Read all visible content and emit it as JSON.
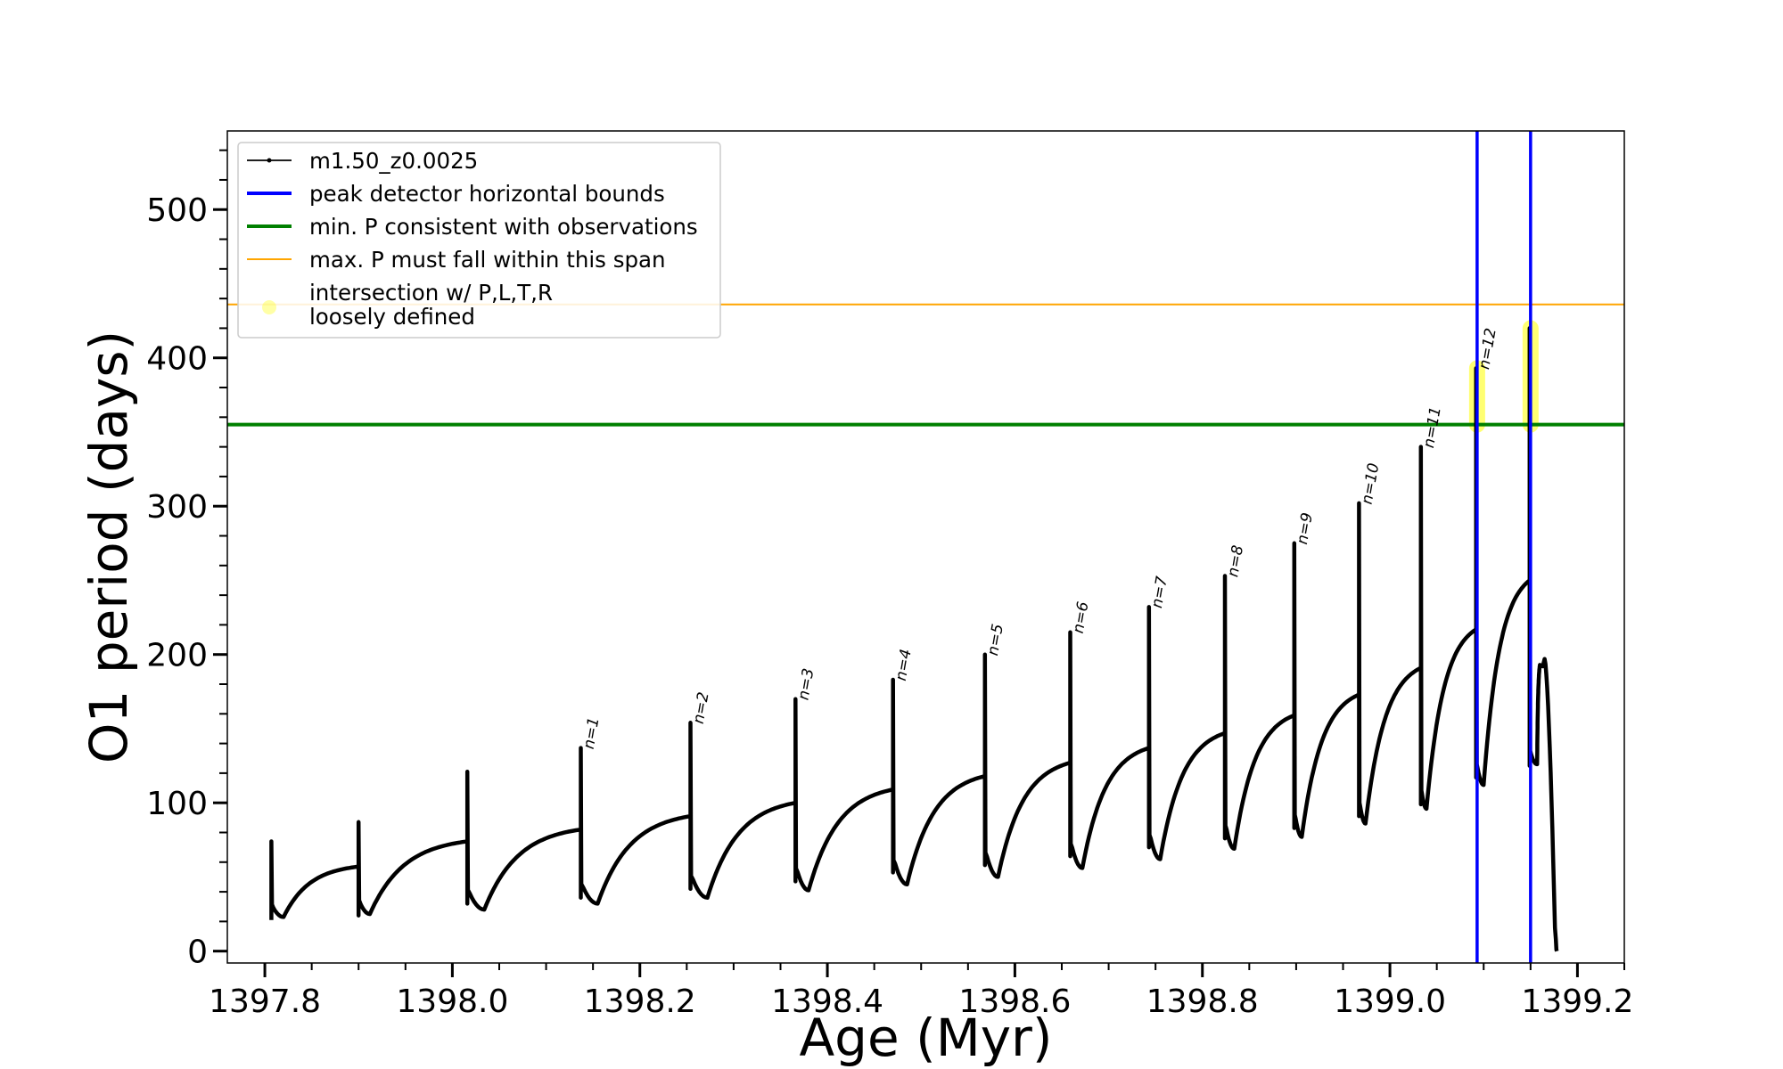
{
  "chart_data": {
    "type": "line",
    "xlabel": "Age (Myr)",
    "ylabel": "O1 period (days)",
    "xlim": [
      1397.76,
      1399.25
    ],
    "ylim": [
      -8,
      553
    ],
    "xticks": [
      1397.8,
      1398.0,
      1398.2,
      1398.4,
      1398.6,
      1398.8,
      1399.0,
      1399.2
    ],
    "xtick_labels": [
      "1397.8",
      "1398.0",
      "1398.2",
      "1398.4",
      "1398.6",
      "1398.8",
      "1399.0",
      "1399.2"
    ],
    "yticks": [
      0,
      100,
      200,
      300,
      400,
      500
    ],
    "ytick_labels": [
      "0",
      "100",
      "200",
      "300",
      "400",
      "500"
    ],
    "legend_position": "upper-left",
    "grid": false,
    "series": [
      {
        "name": "m1.50_z0.0025",
        "color": "#000000",
        "style": "line-with-small-points",
        "pulses": [
          {
            "age": 1397.807,
            "spike_top": 74,
            "spike_bottom": 21,
            "trough_age": 1397.82,
            "trough": 23,
            "end_age": 1397.9,
            "end_period": 57
          },
          {
            "age": 1397.9,
            "spike_top": 87,
            "spike_bottom": 24,
            "trough_age": 1397.912,
            "trough": 25,
            "end_age": 1398.016,
            "end_period": 74
          },
          {
            "age": 1398.016,
            "spike_top": 121,
            "spike_bottom": 32,
            "trough_age": 1398.034,
            "trough": 28,
            "end_age": 1398.137,
            "end_period": 82
          },
          {
            "age": 1398.137,
            "spike_top": 137,
            "spike_bottom": 36,
            "trough_age": 1398.155,
            "trough": 32,
            "end_age": 1398.254,
            "end_period": 91
          },
          {
            "age": 1398.254,
            "spike_top": 154,
            "spike_bottom": 42,
            "trough_age": 1398.272,
            "trough": 36,
            "end_age": 1398.366,
            "end_period": 100
          },
          {
            "age": 1398.366,
            "spike_top": 170,
            "spike_bottom": 47,
            "trough_age": 1398.38,
            "trough": 41,
            "end_age": 1398.47,
            "end_period": 109
          },
          {
            "age": 1398.47,
            "spike_top": 183,
            "spike_bottom": 53,
            "trough_age": 1398.485,
            "trough": 45,
            "end_age": 1398.568,
            "end_period": 118
          },
          {
            "age": 1398.568,
            "spike_top": 200,
            "spike_bottom": 58,
            "trough_age": 1398.582,
            "trough": 50,
            "end_age": 1398.659,
            "end_period": 127
          },
          {
            "age": 1398.659,
            "spike_top": 215,
            "spike_bottom": 64,
            "trough_age": 1398.672,
            "trough": 56,
            "end_age": 1398.743,
            "end_period": 137
          },
          {
            "age": 1398.743,
            "spike_top": 232,
            "spike_bottom": 70,
            "trough_age": 1398.755,
            "trough": 62,
            "end_age": 1398.824,
            "end_period": 147
          },
          {
            "age": 1398.824,
            "spike_top": 253,
            "spike_bottom": 76,
            "trough_age": 1398.834,
            "trough": 69,
            "end_age": 1398.898,
            "end_period": 159
          },
          {
            "age": 1398.898,
            "spike_top": 275,
            "spike_bottom": 83,
            "trough_age": 1398.906,
            "trough": 77,
            "end_age": 1398.967,
            "end_period": 173
          },
          {
            "age": 1398.967,
            "spike_top": 302,
            "spike_bottom": 91,
            "trough_age": 1398.974,
            "trough": 86,
            "end_age": 1399.033,
            "end_period": 191
          },
          {
            "age": 1399.033,
            "spike_top": 340,
            "spike_bottom": 99,
            "trough_age": 1399.039,
            "trough": 96,
            "end_age": 1399.092,
            "end_period": 217
          },
          {
            "age": 1399.092,
            "spike_top": 393,
            "spike_bottom": 117,
            "trough_age": 1399.1,
            "trough": 112,
            "end_age": 1399.149,
            "end_period": 250
          },
          {
            "age": 1399.149,
            "spike_top": 420,
            "spike_bottom": 125,
            "trough_age": 1399.157,
            "trough": 126,
            "end_age": 1399.16,
            "end_period": 193
          }
        ],
        "final_decline": {
          "peak_age": 1399.165,
          "peak": 197,
          "end_age": 1399.178,
          "end_period": 0
        }
      },
      {
        "name": "peak detector horizontal bounds",
        "color": "#0000ff",
        "type": "vlines",
        "x": [
          1399.093,
          1399.15
        ]
      },
      {
        "name": "min. P consistent with observations",
        "color": "#008000",
        "type": "hline",
        "y": 355
      },
      {
        "name": "max. P must fall within this span",
        "color": "#ffa500",
        "type": "hline",
        "y": 436
      },
      {
        "name": "intersection w/ P,L,T,R\nloosely defined",
        "color": "#ffff00",
        "type": "highlight",
        "points": [
          {
            "x": 1399.093,
            "y_min": 355,
            "y_max": 393
          },
          {
            "x": 1399.15,
            "y_min": 355,
            "y_max": 420
          }
        ]
      }
    ],
    "annotations": [
      {
        "text": "n=1",
        "x": 1398.137,
        "y": 137
      },
      {
        "text": "n=2",
        "x": 1398.254,
        "y": 154
      },
      {
        "text": "n=3",
        "x": 1398.366,
        "y": 170
      },
      {
        "text": "n=4",
        "x": 1398.47,
        "y": 183
      },
      {
        "text": "n=5",
        "x": 1398.568,
        "y": 200
      },
      {
        "text": "n=6",
        "x": 1398.659,
        "y": 215
      },
      {
        "text": "n=7",
        "x": 1398.743,
        "y": 232
      },
      {
        "text": "n=8",
        "x": 1398.824,
        "y": 253
      },
      {
        "text": "n=9",
        "x": 1398.898,
        "y": 275
      },
      {
        "text": "n=10",
        "x": 1398.967,
        "y": 302
      },
      {
        "text": "n=11",
        "x": 1399.033,
        "y": 340
      },
      {
        "text": "n=12",
        "x": 1399.092,
        "y": 393
      }
    ]
  }
}
